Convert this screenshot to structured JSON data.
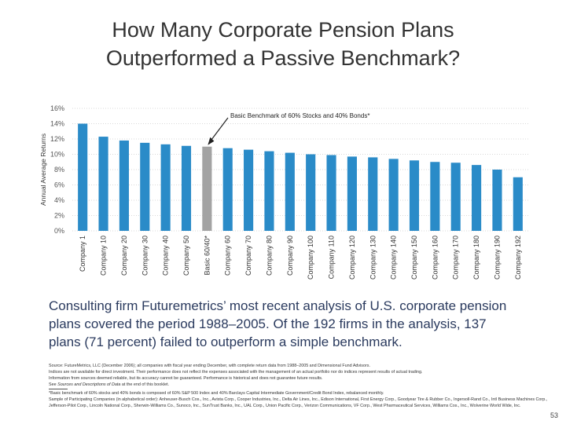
{
  "title_line1": "How Many Corporate Pension Plans",
  "title_line2": "Outperformed a Passive Benchmark?",
  "chart_data": {
    "type": "bar",
    "ylabel": "Annual Average Returns",
    "ylim": [
      0,
      16
    ],
    "yticks": [
      "0%",
      "2%",
      "4%",
      "6%",
      "8%",
      "10%",
      "12%",
      "14%",
      "16%"
    ],
    "categories": [
      "Company 1",
      "Company 10",
      "Company 20",
      "Company 30",
      "Company 40",
      "Company 50",
      "Basic 60/40*",
      "Company 60",
      "Company 70",
      "Company 80",
      "Company 90",
      "Company 100",
      "Company 110",
      "Company 120",
      "Company 130",
      "Company 140",
      "Company 150",
      "Company 160",
      "Company 170",
      "Company 180",
      "Company 190",
      "Company 192"
    ],
    "values": [
      14.0,
      12.3,
      11.8,
      11.5,
      11.3,
      11.1,
      11.0,
      10.8,
      10.6,
      10.4,
      10.2,
      10.0,
      9.9,
      9.7,
      9.6,
      9.4,
      9.2,
      9.0,
      8.9,
      8.6,
      8.0,
      7.0
    ],
    "highlight_index": 6,
    "colors": {
      "bar": "#2a8bc8",
      "highlight": "#a3a3a3",
      "axis_text": "#555555"
    },
    "annotation": "Basic Benchmark of 60% Stocks and 40% Bonds*"
  },
  "body_text": "Consulting firm Futuremetrics’ most recent analysis of U.S. corporate pension plans covered the period 1988–2005. Of the 192 firms in the analysis, 137 plans (71 percent) failed to outperform a simple benchmark.",
  "footnotes": {
    "source": "Source: FutureMetrics, LLC (December 2006); all companies with fiscal year ending December, with complete return data from 1988–2005 and Dimensional Fund Advisors.",
    "indices": "Indices are not available for direct investment. Their performance does not reflect the expenses associated with the management of an actual portfolio nor do indices represent results of actual trading.",
    "information": "Information from sources deemed reliable, but its accuracy cannot be guaranteed. Performance is historical and does not guarantee future results.",
    "see_prefix": "See ",
    "see_italic": "Sources and Descriptions of Data",
    "see_suffix": " at the end of this booklet.",
    "benchmark": "*Basic benchmark of 60% stocks and 40% bonds is composed of 60% S&P 500 Index and 40% Barclays Capital Intermediate Government/Credit Bond Index, rebalanced monthly.",
    "sample": "Sample of Participating Companies (in alphabetical order): Anheuser-Busch Cos., Inc., Avista Corp., Cooper Industries, Inc., Delta Air Lines, Inc., Edison International, First Energy Corp., Goodyear Tire & Rubber Co., Ingersoll-Rand Co., Intl Business Machines Corp., Jefferson-Pilot Corp., Lincoln National Corp., Sherwin-Williams Co., Sunoco, Inc., SunTrust Banks, Inc., UAL Corp., Union Pacific Corp., Verizon Communications, VF Corp., West Pharmaceutical Services, Williams Cos., Inc., Wolverine World Wide, Inc."
  },
  "page_number": "53"
}
